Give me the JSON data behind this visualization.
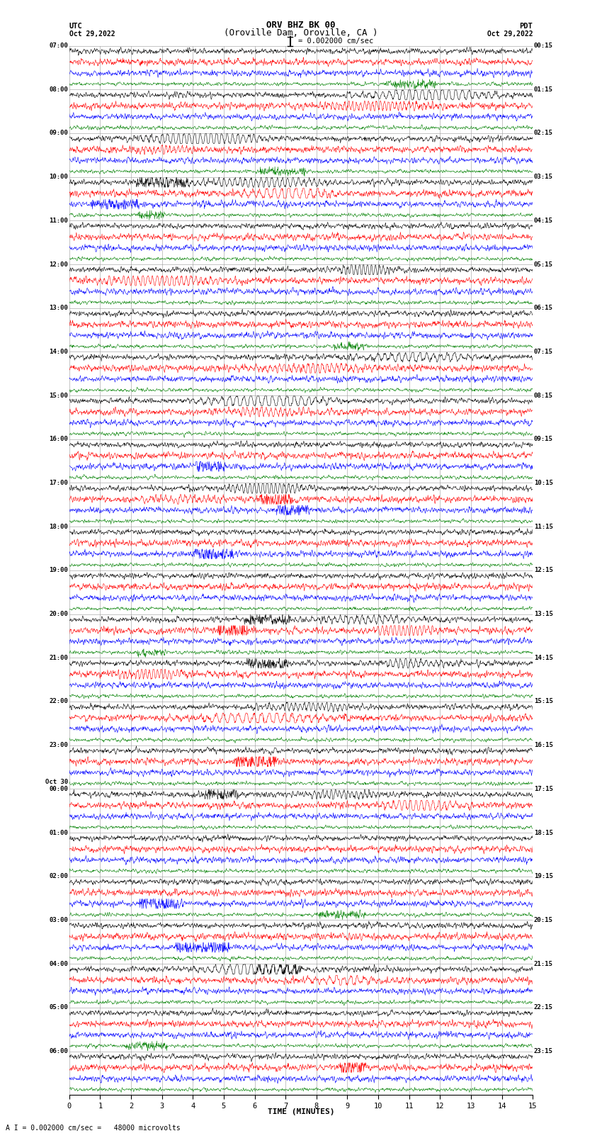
{
  "title_line1": "ORV BHZ BK 00",
  "title_line2": "(Oroville Dam, Oroville, CA )",
  "scale_bar_text": "= 0.002000 cm/sec",
  "left_label": "UTC",
  "left_date": "Oct 29,2022",
  "right_label": "PDT",
  "right_date": "Oct 29,2022",
  "bottom_label": "TIME (MINUTES)",
  "bottom_note": "A I = 0.002000 cm/sec =   48000 microvolts",
  "xlabel_ticks": [
    0,
    1,
    2,
    3,
    4,
    5,
    6,
    7,
    8,
    9,
    10,
    11,
    12,
    13,
    14,
    15
  ],
  "trace_colors": [
    "black",
    "red",
    "blue",
    "green"
  ],
  "bg_color": "#ffffff",
  "left_times_utc": [
    "07:00",
    "08:00",
    "09:00",
    "10:00",
    "11:00",
    "12:00",
    "13:00",
    "14:00",
    "15:00",
    "16:00",
    "17:00",
    "18:00",
    "19:00",
    "20:00",
    "21:00",
    "22:00",
    "23:00",
    "Oct 30\n00:00",
    "01:00",
    "02:00",
    "03:00",
    "04:00",
    "05:00",
    "06:00"
  ],
  "right_times_pdt": [
    "00:15",
    "01:15",
    "02:15",
    "03:15",
    "04:15",
    "05:15",
    "06:15",
    "07:15",
    "08:15",
    "09:15",
    "10:15",
    "11:15",
    "12:15",
    "13:15",
    "14:15",
    "15:15",
    "16:15",
    "17:15",
    "18:15",
    "19:15",
    "20:15",
    "21:15",
    "22:15",
    "23:15"
  ],
  "num_hours": 24,
  "traces_per_hour": 4,
  "noise_std_black": 0.18,
  "noise_std_red": 0.22,
  "noise_std_blue": 0.2,
  "noise_std_green": 0.12,
  "samples_per_trace": 1500
}
